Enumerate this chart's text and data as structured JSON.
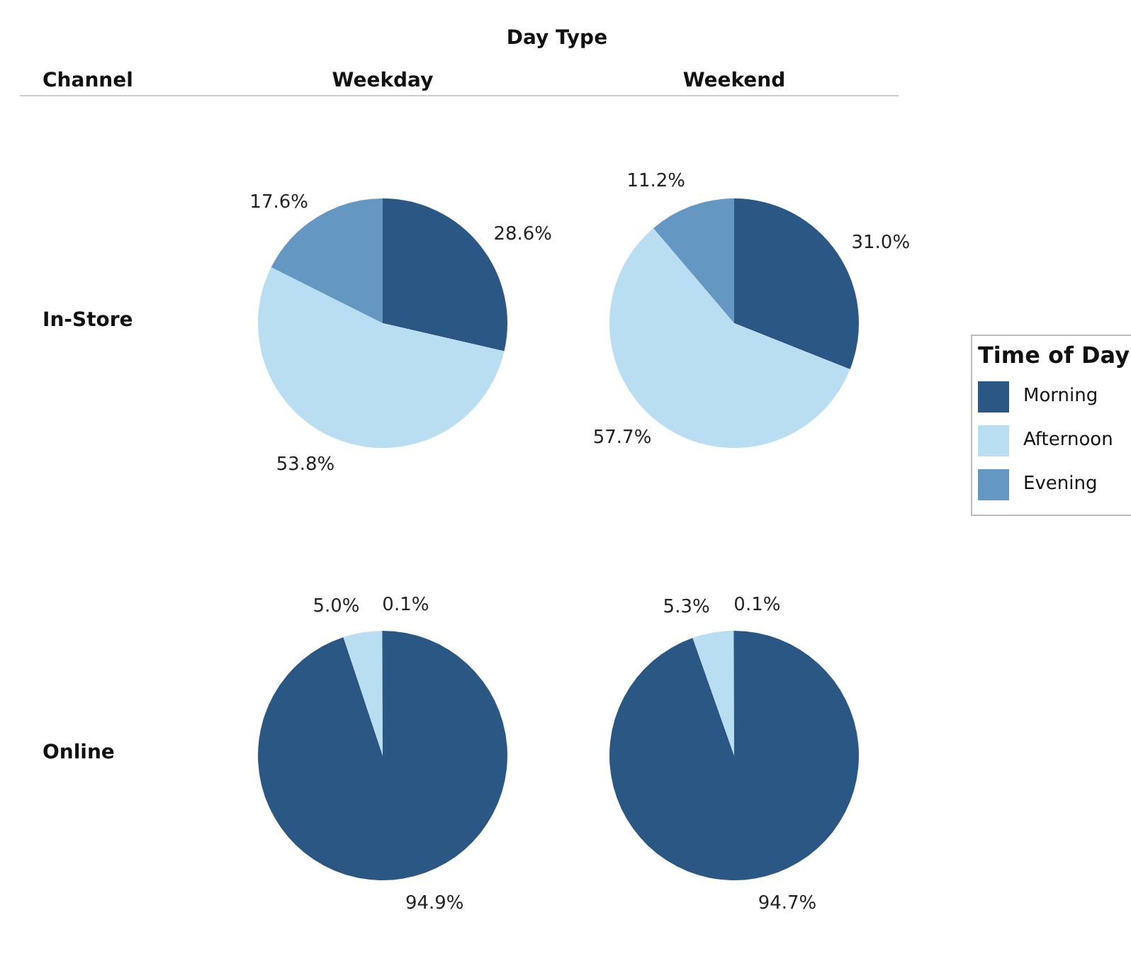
{
  "chart_data": [
    {
      "type": "pie",
      "title": "Weekday",
      "ylabel": "In-Store",
      "annotations": [
        "Day Type",
        "Channel"
      ],
      "legend": "right",
      "legend_title": "Time of Day",
      "categories": [
        "Morning",
        "Afternoon",
        "Evening"
      ],
      "values": [
        28.6,
        53.8,
        17.6
      ],
      "value_labels": [
        "28.6%",
        "53.8%",
        "17.6%"
      ],
      "colors": [
        "#2a5783",
        "#b9ddf1",
        "#6497c2"
      ]
    },
    {
      "type": "pie",
      "title": "Weekend",
      "values": [
        31.0,
        57.7,
        11.2
      ],
      "value_labels": [
        "31.0%",
        "57.7%",
        "11.2%"
      ],
      "colors": [
        "#2a5783",
        "#b9ddf1",
        "#6497c2"
      ]
    },
    {
      "type": "pie",
      "ylabel": "Online",
      "values": [
        94.9,
        5.0,
        0.1
      ],
      "value_labels": [
        "94.9%",
        "5.0%",
        "0.1%"
      ],
      "colors": [
        "#2a5783",
        "#b9ddf1",
        "#6497c2"
      ]
    },
    {
      "type": "pie",
      "values": [
        94.7,
        5.3,
        0.1
      ],
      "value_labels": [
        "94.7%",
        "5.3%",
        "0.1%"
      ],
      "colors": [
        "#2a5783",
        "#b9ddf1",
        "#6497c2"
      ]
    }
  ]
}
